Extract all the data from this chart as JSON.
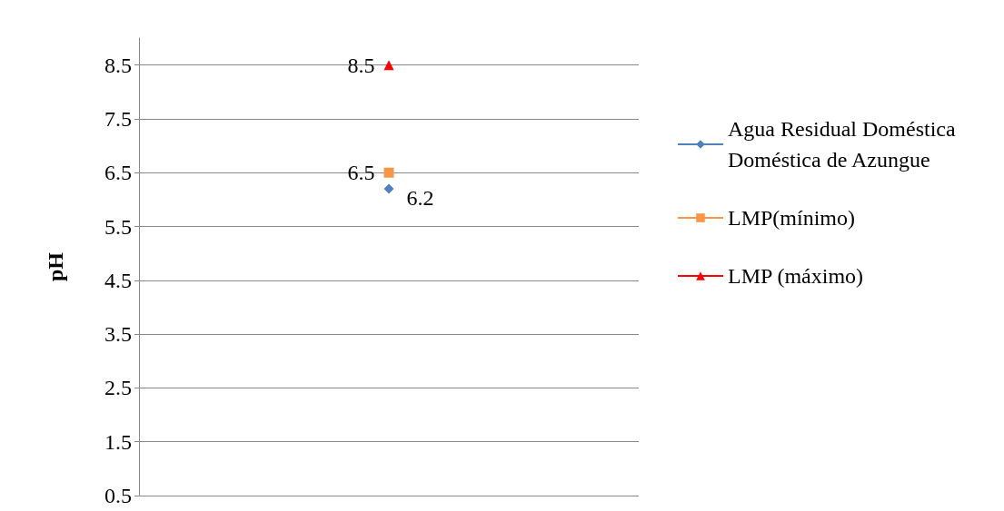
{
  "chart_data": {
    "type": "line",
    "ylabel": "pH",
    "categories": [
      null
    ],
    "series": [
      {
        "name": "Agua Residual Doméstica Doméstica de Azungue",
        "color": "#4f81bd",
        "values": [
          6.2
        ],
        "marker": "diamond"
      },
      {
        "name": "LMP(mínimo)",
        "color": "#f79646",
        "values": [
          6.5
        ],
        "marker": "square"
      },
      {
        "name": "LMP (máximo)",
        "color": "#ff0000",
        "values": [
          8.5
        ],
        "marker": "triangle"
      }
    ],
    "ylim": [
      0.5,
      9.0
    ],
    "yticks": [
      0.5,
      1.5,
      2.5,
      3.5,
      4.5,
      5.5,
      6.5,
      7.5,
      8.5
    ],
    "grid": "y",
    "legend": "right",
    "data_labels": true
  }
}
